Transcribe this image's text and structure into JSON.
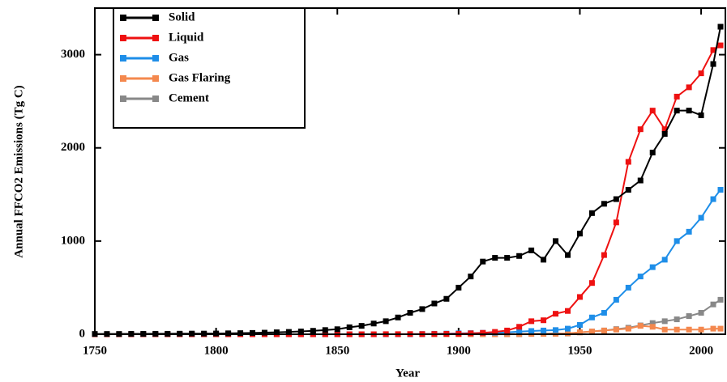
{
  "chart_data": {
    "type": "line",
    "x_label": "Year",
    "y_label": "Annual FFCO2 Emissions (Tg C)",
    "x": [
      1750,
      1755,
      1760,
      1765,
      1770,
      1775,
      1780,
      1785,
      1790,
      1795,
      1800,
      1805,
      1810,
      1815,
      1820,
      1825,
      1830,
      1835,
      1840,
      1845,
      1850,
      1855,
      1860,
      1865,
      1870,
      1875,
      1880,
      1885,
      1890,
      1895,
      1900,
      1905,
      1910,
      1915,
      1920,
      1925,
      1930,
      1935,
      1940,
      1945,
      1950,
      1955,
      1960,
      1965,
      1970,
      1975,
      1980,
      1985,
      1990,
      1995,
      2000,
      2005,
      2008
    ],
    "series": [
      {
        "name": "Solid",
        "color": "#000000",
        "values": [
          3,
          3,
          3,
          4,
          4,
          5,
          5,
          6,
          7,
          7,
          8,
          10,
          12,
          14,
          17,
          21,
          25,
          30,
          37,
          45,
          54,
          75,
          90,
          115,
          140,
          180,
          230,
          270,
          330,
          380,
          500,
          620,
          780,
          820,
          820,
          840,
          900,
          800,
          1000,
          850,
          1080,
          1300,
          1400,
          1450,
          1550,
          1650,
          1950,
          2150,
          2400,
          2400,
          2350,
          2900,
          3300
        ]
      },
      {
        "name": "Liquid",
        "color": "#ee1111",
        "values": [
          0,
          0,
          0,
          0,
          0,
          0,
          0,
          0,
          0,
          0,
          0,
          0,
          0,
          0,
          0,
          0,
          0,
          0,
          0,
          0,
          0,
          0,
          0,
          0,
          1,
          1,
          2,
          2,
          3,
          4,
          5,
          10,
          15,
          25,
          40,
          80,
          140,
          150,
          220,
          250,
          400,
          550,
          850,
          1200,
          1850,
          2200,
          2400,
          2200,
          2550,
          2650,
          2800,
          3050,
          3100
        ]
      },
      {
        "name": "Gas",
        "color": "#1e8ee8",
        "values": [
          0,
          0,
          0,
          0,
          0,
          0,
          0,
          0,
          0,
          0,
          0,
          0,
          0,
          0,
          0,
          0,
          0,
          0,
          0,
          0,
          0,
          0,
          0,
          0,
          0,
          0,
          0,
          2,
          5,
          7,
          10,
          12,
          15,
          17,
          20,
          28,
          35,
          40,
          45,
          60,
          100,
          180,
          230,
          370,
          500,
          620,
          720,
          800,
          1000,
          1100,
          1250,
          1450,
          1550
        ]
      },
      {
        "name": "Gas Flaring",
        "color": "#f4884e",
        "values": [
          0,
          0,
          0,
          0,
          0,
          0,
          0,
          0,
          0,
          0,
          0,
          0,
          0,
          0,
          0,
          0,
          0,
          0,
          0,
          0,
          0,
          0,
          0,
          0,
          0,
          0,
          0,
          0,
          0,
          0,
          0,
          0,
          0,
          0,
          1,
          2,
          3,
          4,
          5,
          10,
          20,
          30,
          40,
          50,
          60,
          90,
          80,
          50,
          50,
          50,
          50,
          60,
          60
        ]
      },
      {
        "name": "Cement",
        "color": "#888888",
        "values": [
          0,
          0,
          0,
          0,
          0,
          0,
          0,
          0,
          0,
          0,
          0,
          0,
          0,
          0,
          0,
          0,
          0,
          0,
          0,
          0,
          0,
          0,
          0,
          0,
          0,
          0,
          0,
          0,
          0,
          0,
          0,
          0,
          0,
          0,
          0,
          0,
          5,
          6,
          10,
          8,
          20,
          30,
          40,
          55,
          70,
          95,
          120,
          140,
          160,
          195,
          230,
          320,
          370
        ]
      }
    ],
    "xlim": [
      1750,
      2010
    ],
    "xticks": [
      1750,
      1800,
      1850,
      1900,
      1950,
      2000
    ],
    "ylim": [
      0,
      3500
    ],
    "yticks": [
      0,
      1000,
      2000,
      3000
    ],
    "legend": "upper-left"
  }
}
